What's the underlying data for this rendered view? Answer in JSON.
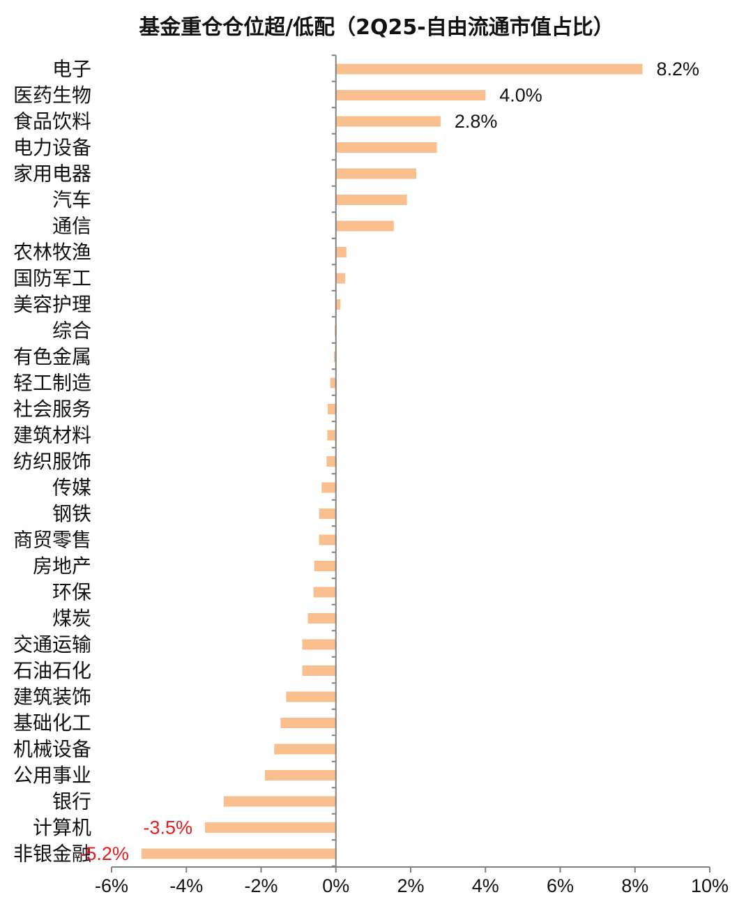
{
  "chart_data": {
    "type": "bar",
    "orientation": "horizontal",
    "title": "基金重仓仓位超/低配（2Q25-自由流通市值占比）",
    "bar_color": "#F9BF8F",
    "positive_label_color": "#111111",
    "negative_label_color": "#E8191D",
    "xlim": [
      -6,
      10
    ],
    "xticks": [
      -6,
      -4,
      -2,
      0,
      2,
      4,
      6,
      8,
      10
    ],
    "xtick_labels": [
      "-6%",
      "-4%",
      "-2%",
      "0%",
      "2%",
      "4%",
      "6%",
      "8%",
      "10%"
    ],
    "grid": false,
    "categories": [
      "电子",
      "医药生物",
      "食品饮料",
      "电力设备",
      "家用电器",
      "汽车",
      "通信",
      "农林牧渔",
      "国防军工",
      "美容护理",
      "综合",
      "有色金属",
      "轻工制造",
      "社会服务",
      "建筑材料",
      "纺织服饰",
      "传媒",
      "钢铁",
      "商贸零售",
      "房地产",
      "环保",
      "煤炭",
      "交通运输",
      "石油石化",
      "建筑装饰",
      "基础化工",
      "机械设备",
      "公用事业",
      "银行",
      "计算机",
      "非银金融"
    ],
    "values": [
      8.2,
      4.0,
      2.8,
      2.7,
      2.15,
      1.9,
      1.55,
      0.28,
      0.25,
      0.12,
      -0.03,
      -0.05,
      -0.15,
      -0.22,
      -0.23,
      -0.25,
      -0.38,
      -0.45,
      -0.45,
      -0.58,
      -0.6,
      -0.75,
      -0.9,
      -0.9,
      -1.33,
      -1.48,
      -1.65,
      -1.9,
      -3.0,
      -3.5,
      -5.2
    ],
    "data_labels": [
      {
        "index": 0,
        "text": "8.2%"
      },
      {
        "index": 1,
        "text": "4.0%"
      },
      {
        "index": 2,
        "text": "2.8%"
      },
      {
        "index": 29,
        "text": "-3.5%"
      },
      {
        "index": 30,
        "text": "-5.2%"
      }
    ]
  }
}
